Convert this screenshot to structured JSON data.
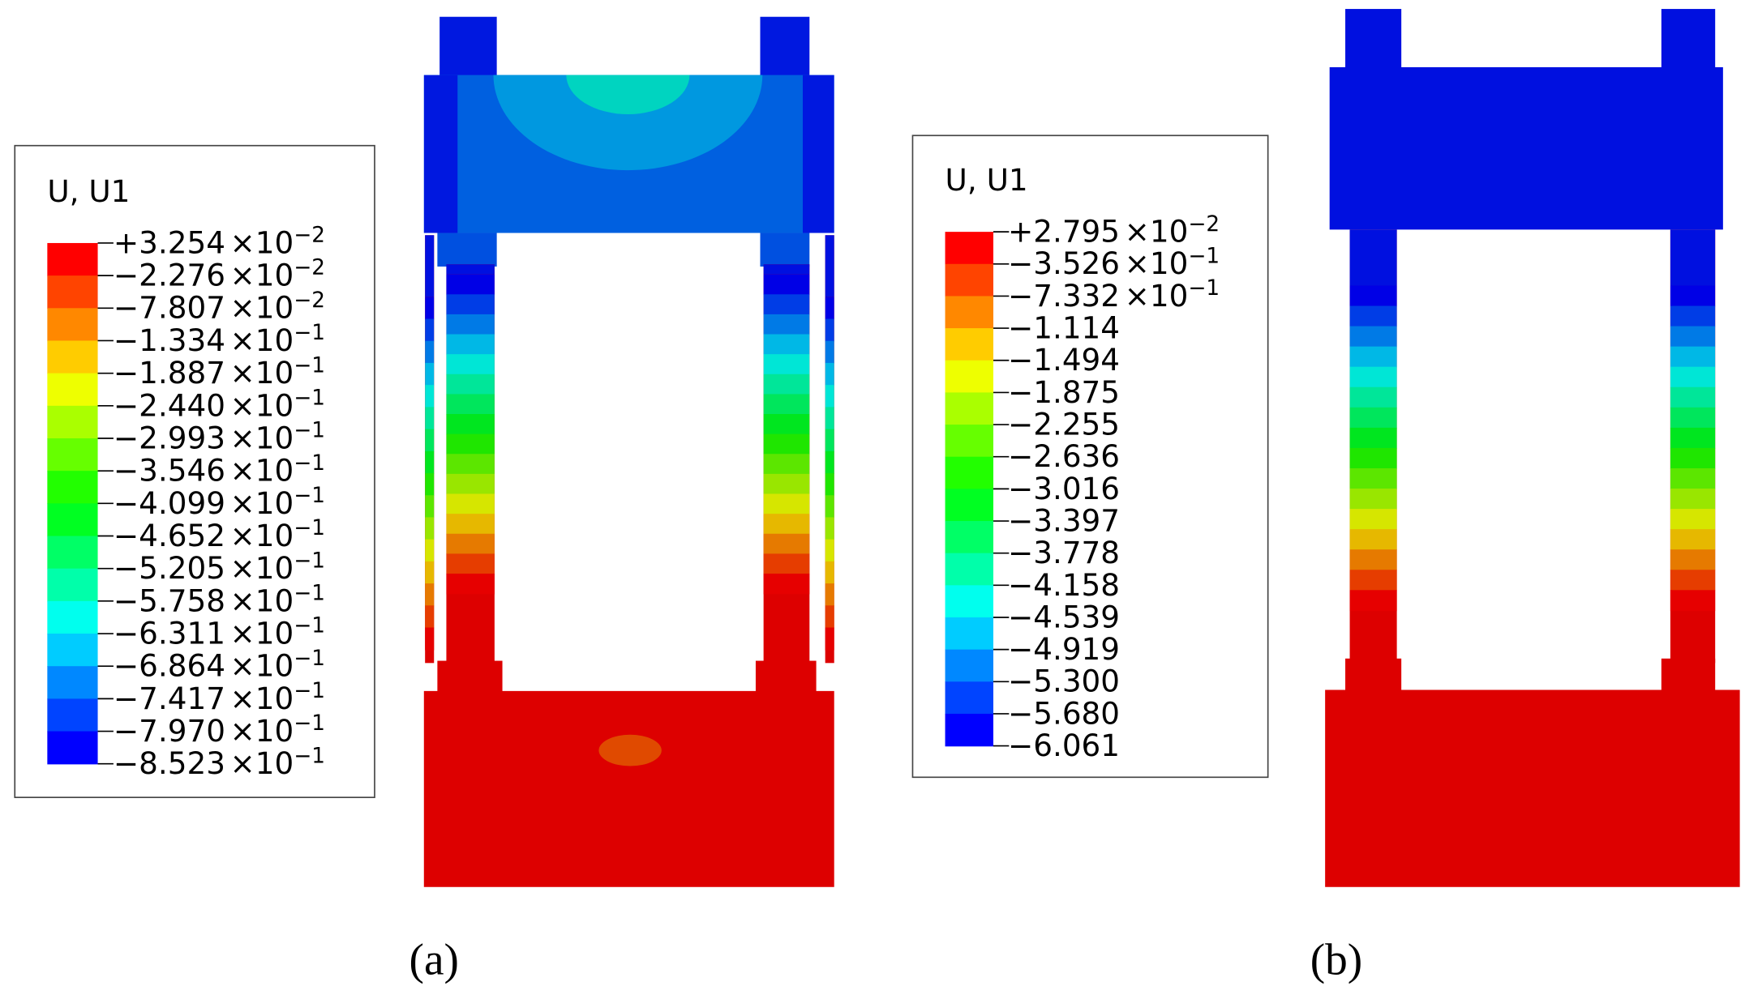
{
  "panels": [
    {
      "legend": {
        "title": "U, U1",
        "labels": [
          [
            "+3.254",
            "×10",
            "−2"
          ],
          [
            "−2.276",
            "×10",
            "−2"
          ],
          [
            "−7.807",
            "×10",
            "−2"
          ],
          [
            "−1.334",
            "×10",
            "−1"
          ],
          [
            "−1.887",
            "×10",
            "−1"
          ],
          [
            "−2.440",
            "×10",
            "−1"
          ],
          [
            "−2.993",
            "×10",
            "−1"
          ],
          [
            "−3.546",
            "×10",
            "−1"
          ],
          [
            "−4.099",
            "×10",
            "−1"
          ],
          [
            "−4.652",
            "×10",
            "−1"
          ],
          [
            "−5.205",
            "×10",
            "−1"
          ],
          [
            "−5.758",
            "×10",
            "−1"
          ],
          [
            "−6.311",
            "×10",
            "−1"
          ],
          [
            "−6.864",
            "×10",
            "−1"
          ],
          [
            "−7.417",
            "×10",
            "−1"
          ],
          [
            "−7.970",
            "×10",
            "−1"
          ],
          [
            "−8.523",
            "×10",
            "−1"
          ]
        ]
      },
      "caption": "(a)"
    },
    {
      "legend": {
        "title": "U, U1",
        "labels": [
          [
            "+2.795",
            "×10",
            "−2"
          ],
          [
            "−3.526",
            "×10",
            "−1"
          ],
          [
            "−7.332",
            "×10",
            "−1"
          ],
          [
            "−1.114"
          ],
          [
            "−1.494"
          ],
          [
            "−1.875"
          ],
          [
            "−2.255"
          ],
          [
            "−2.636"
          ],
          [
            "−3.016"
          ],
          [
            "−3.397"
          ],
          [
            "−3.778"
          ],
          [
            "−4.158"
          ],
          [
            "−4.539"
          ],
          [
            "−4.919"
          ],
          [
            "−5.300"
          ],
          [
            "−5.680"
          ],
          [
            "−6.061"
          ]
        ]
      },
      "caption": "(b)"
    }
  ]
}
